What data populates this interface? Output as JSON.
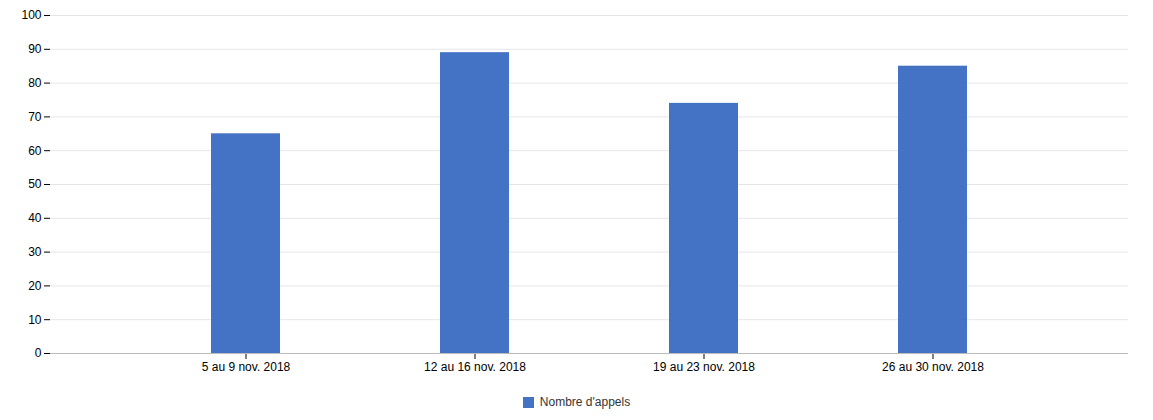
{
  "chart_data": {
    "type": "bar",
    "categories": [
      "5 au 9 nov. 2018",
      "12 au 16 nov. 2018",
      "19 au 23 nov. 2018",
      "26 au 30 nov. 2018"
    ],
    "series": [
      {
        "name": "Nombre d'appels",
        "color": "#4472C4",
        "values": [
          65,
          89,
          74,
          85
        ]
      }
    ],
    "ylim": [
      0,
      100
    ],
    "yticks": [
      0,
      10,
      20,
      30,
      40,
      50,
      60,
      70,
      80,
      90,
      100
    ],
    "grid": true,
    "legend": "bottom"
  }
}
